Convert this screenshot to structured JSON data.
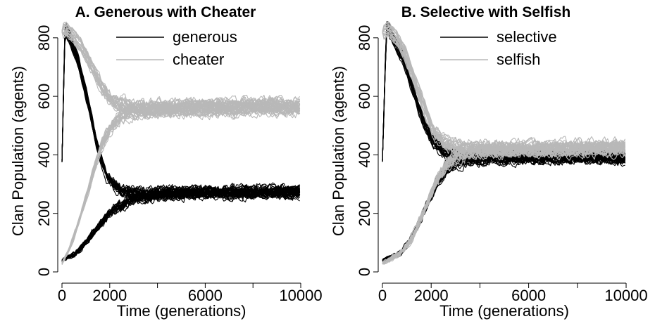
{
  "chart_data": [
    {
      "type": "line",
      "title": "A. Generous with Cheater",
      "xlabel": "Time (generations)",
      "ylabel": "Clan Population (agents)",
      "xlim": [
        0,
        10000
      ],
      "ylim": [
        0,
        850
      ],
      "xticks": [
        0,
        2000,
        4000,
        6000,
        8000,
        10000
      ],
      "xtick_labels": [
        "0",
        "2000",
        "",
        "6000",
        "",
        "10000"
      ],
      "yticks": [
        0,
        200,
        400,
        600,
        800
      ],
      "ytick_labels": [
        "0",
        "200",
        "400",
        "600",
        "800"
      ],
      "grid": false,
      "legend": "top-right",
      "replicates_per_series": 20,
      "series": [
        {
          "name": "generous",
          "color": "#000000",
          "x": [
            0,
            150,
            400,
            800,
            1200,
            1600,
            2000,
            2400,
            2800,
            3200,
            4000,
            5000,
            6000,
            7000,
            8000,
            9000,
            10000
          ],
          "values": [
            380,
            840,
            800,
            720,
            590,
            430,
            330,
            290,
            275,
            270,
            268,
            270,
            272,
            270,
            270,
            272,
            275
          ]
        },
        {
          "name": "",
          "color": "#000000",
          "x": [
            0,
            300,
            600,
            900,
            1200,
            1500,
            1800,
            2100,
            2500,
            3000,
            3500,
            4000,
            5000,
            6000,
            7000,
            8000,
            9000,
            10000
          ],
          "values": [
            40,
            50,
            60,
            80,
            110,
            140,
            170,
            200,
            225,
            245,
            255,
            262,
            268,
            270,
            271,
            272,
            272,
            273
          ]
        },
        {
          "name": "cheater",
          "color": "#b8b8b8",
          "x": [
            0,
            300,
            600,
            900,
            1200,
            1500,
            1800,
            2100,
            2400,
            2800,
            3200,
            3600,
            4000,
            5000,
            6000,
            7000,
            8000,
            9000,
            10000
          ],
          "values": [
            30,
            70,
            130,
            200,
            280,
            370,
            440,
            490,
            520,
            540,
            550,
            555,
            558,
            560,
            562,
            563,
            565,
            565,
            565
          ]
        },
        {
          "name": "",
          "color": "#b8b8b8",
          "x": [
            0,
            200,
            500,
            800,
            1100,
            1400,
            1700,
            2000,
            2400,
            2800,
            3200,
            4000,
            5000,
            6000,
            7000,
            8000,
            9000,
            10000
          ],
          "values": [
            820,
            830,
            810,
            780,
            740,
            690,
            640,
            600,
            575,
            565,
            560,
            560,
            562,
            563,
            565,
            565,
            566,
            566
          ]
        }
      ]
    },
    {
      "type": "line",
      "title": "B. Selective with Selfish",
      "xlabel": "Time (generations)",
      "ylabel": "Clan Population (agents)",
      "xlim": [
        0,
        10000
      ],
      "ylim": [
        0,
        850
      ],
      "xticks": [
        0,
        2000,
        4000,
        6000,
        8000,
        10000
      ],
      "xtick_labels": [
        "0",
        "2000",
        "",
        "6000",
        "",
        "10000"
      ],
      "yticks": [
        0,
        200,
        400,
        600,
        800
      ],
      "ytick_labels": [
        "0",
        "200",
        "400",
        "600",
        "800"
      ],
      "grid": false,
      "legend": "top-right",
      "replicates_per_series": 20,
      "series": [
        {
          "name": "selective",
          "color": "#000000",
          "x": [
            0,
            150,
            400,
            800,
            1200,
            1600,
            2000,
            2400,
            2800,
            3200,
            4000,
            5000,
            6000,
            7000,
            8000,
            9000,
            10000
          ],
          "values": [
            380,
            840,
            800,
            730,
            620,
            520,
            450,
            415,
            400,
            395,
            395,
            393,
            395,
            395,
            393,
            395,
            390
          ]
        },
        {
          "name": "",
          "color": "#000000",
          "x": [
            0,
            300,
            600,
            900,
            1200,
            1500,
            1800,
            2100,
            2500,
            3000,
            3500,
            4000,
            5000,
            6000,
            7000,
            8000,
            9000,
            10000
          ],
          "values": [
            40,
            50,
            60,
            90,
            130,
            180,
            240,
            300,
            350,
            375,
            385,
            390,
            392,
            393,
            394,
            394,
            393,
            392
          ]
        },
        {
          "name": "selfish",
          "color": "#b8b8b8",
          "x": [
            0,
            300,
            600,
            900,
            1200,
            1500,
            1800,
            2100,
            2500,
            3000,
            3500,
            4000,
            5000,
            6000,
            7000,
            8000,
            9000,
            10000
          ],
          "values": [
            30,
            45,
            60,
            90,
            130,
            190,
            250,
            310,
            370,
            400,
            410,
            415,
            418,
            420,
            420,
            421,
            422,
            425
          ]
        },
        {
          "name": "",
          "color": "#b8b8b8",
          "x": [
            0,
            200,
            500,
            800,
            1100,
            1400,
            1700,
            2000,
            2400,
            2800,
            3200,
            4000,
            5000,
            6000,
            7000,
            8000,
            9000,
            10000
          ],
          "values": [
            820,
            830,
            800,
            750,
            680,
            610,
            540,
            480,
            445,
            430,
            425,
            422,
            423,
            424,
            425,
            426,
            428,
            430
          ]
        }
      ]
    }
  ]
}
